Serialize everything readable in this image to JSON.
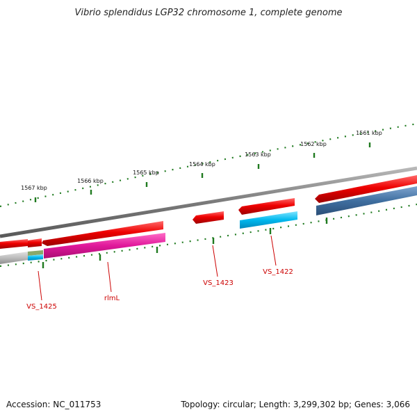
{
  "header": {
    "title": "Vibrio splendidus LGP32 chromosome 1, complete genome"
  },
  "ticks": [
    {
      "label": "1567 kbp"
    },
    {
      "label": "1566 kbp"
    },
    {
      "label": "1565 kbp"
    },
    {
      "label": "1564 kbp"
    },
    {
      "label": "1563 kbp"
    },
    {
      "label": "1562 kbp"
    },
    {
      "label": "1561 kbp"
    }
  ],
  "genes": [
    {
      "label": "VS_1425"
    },
    {
      "label": "rlmL"
    },
    {
      "label": "VS_1423"
    },
    {
      "label": "VS_1422"
    }
  ],
  "footer": {
    "accession": "Accession: NC_011753",
    "summary": "Topology: circular; Length: 3,299,302 bp; Genes: 3,066"
  },
  "colors": {
    "backbone": "#808080",
    "forward_cds": "#ee0000",
    "rlmL": "#e0189a",
    "cyan_gene": "#00b8ee",
    "blue_gene": "#3f6fa0",
    "ticks": "#1f7a1f",
    "label": "#cc0000"
  }
}
